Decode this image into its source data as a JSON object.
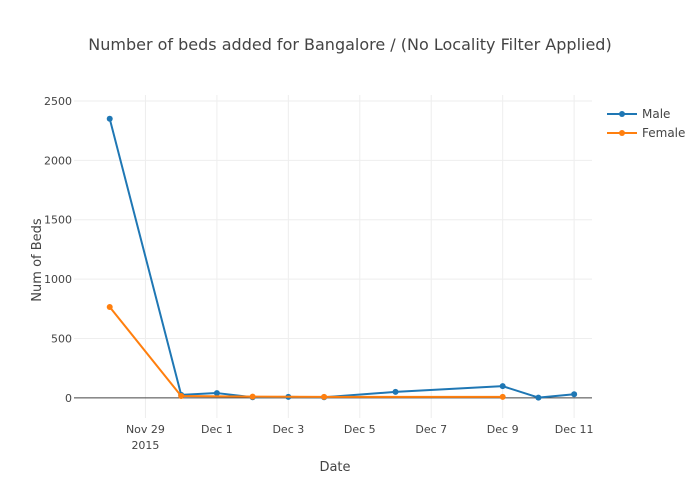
{
  "chart_data": {
    "type": "line",
    "title": "Number of beds added for Bangalore / (No Locality Filter Applied)",
    "xlabel": "Date",
    "ylabel": "Num of Beds",
    "ylim": [
      -170,
      2550
    ],
    "xlim": [
      "2015-11-27",
      "2015-12-11T12:00"
    ],
    "y_ticks": [
      0,
      500,
      1000,
      1500,
      2000,
      2500
    ],
    "x_ticks": [
      {
        "date": "2015-11-29",
        "label": "Nov 29",
        "sublabel": "2015"
      },
      {
        "date": "2015-12-01",
        "label": "Dec 1",
        "sublabel": ""
      },
      {
        "date": "2015-12-03",
        "label": "Dec 3",
        "sublabel": ""
      },
      {
        "date": "2015-12-05",
        "label": "Dec 5",
        "sublabel": ""
      },
      {
        "date": "2015-12-07",
        "label": "Dec 7",
        "sublabel": ""
      },
      {
        "date": "2015-12-09",
        "label": "Dec 9",
        "sublabel": ""
      },
      {
        "date": "2015-12-11",
        "label": "Dec 11",
        "sublabel": ""
      }
    ],
    "grid": true,
    "legend_position": "top-right",
    "series": [
      {
        "name": "Male",
        "color": "#1f77b4",
        "points": [
          {
            "x": "2015-11-28",
            "y": 2350
          },
          {
            "x": "2015-11-30",
            "y": 25
          },
          {
            "x": "2015-12-01",
            "y": 40
          },
          {
            "x": "2015-12-02",
            "y": 5
          },
          {
            "x": "2015-12-03",
            "y": 8
          },
          {
            "x": "2015-12-04",
            "y": 5
          },
          {
            "x": "2015-12-06",
            "y": 50
          },
          {
            "x": "2015-12-09",
            "y": 98
          },
          {
            "x": "2015-12-10",
            "y": 2
          },
          {
            "x": "2015-12-11",
            "y": 30
          }
        ]
      },
      {
        "name": "Female",
        "color": "#ff7f0e",
        "points": [
          {
            "x": "2015-11-28",
            "y": 765
          },
          {
            "x": "2015-11-30",
            "y": 15
          },
          {
            "x": "2015-12-02",
            "y": 10
          },
          {
            "x": "2015-12-04",
            "y": 8
          },
          {
            "x": "2015-12-09",
            "y": 8
          }
        ]
      }
    ]
  }
}
